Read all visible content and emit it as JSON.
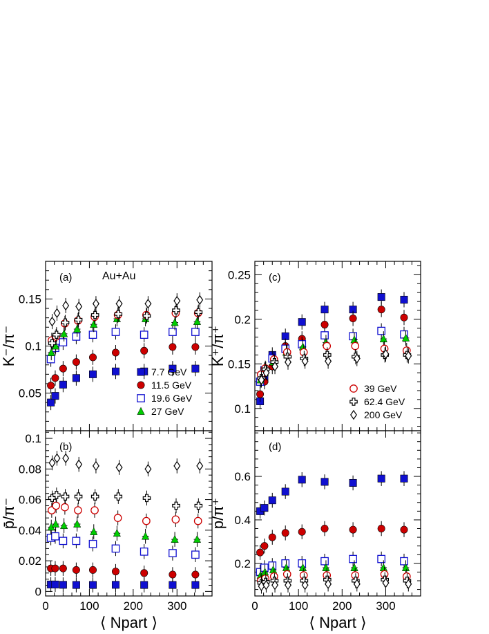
{
  "annotation": "Au+Au",
  "chart_data": [
    {
      "id": "a",
      "type": "scatter",
      "panel_label": "(a)",
      "ylabel": "K⁻/π⁻",
      "xlabel": "",
      "xlim": [
        0,
        380
      ],
      "ylim": [
        0.01,
        0.19
      ],
      "xticks": [
        0,
        100,
        200,
        300
      ],
      "yticks": [
        0.05,
        0.1,
        0.15
      ],
      "ytick_labels": [
        "0.05",
        "0.1",
        "0.15"
      ],
      "legend": {
        "position": "bottom-right",
        "entries": [
          "7.7 GeV",
          "11.5 GeV",
          "19.6 GeV",
          "27 GeV"
        ]
      },
      "series": [
        {
          "name": "7.7 GeV",
          "marker": "filled-square",
          "color": "#1010d0",
          "x": [
            12,
            22,
            40,
            70,
            108,
            160,
            225,
            290,
            342
          ],
          "y": [
            0.04,
            0.047,
            0.059,
            0.066,
            0.07,
            0.073,
            0.073,
            0.076,
            0.076
          ]
        },
        {
          "name": "11.5 GeV",
          "marker": "filled-circle",
          "color": "#cc0000",
          "x": [
            12,
            22,
            40,
            70,
            108,
            160,
            225,
            290,
            342
          ],
          "y": [
            0.058,
            0.066,
            0.076,
            0.083,
            0.088,
            0.093,
            0.095,
            0.099,
            0.099
          ]
        },
        {
          "name": "19.6 GeV",
          "marker": "open-square",
          "color": "#1010d0",
          "x": [
            12,
            22,
            40,
            70,
            108,
            160,
            225,
            290,
            342
          ],
          "y": [
            0.086,
            0.098,
            0.104,
            0.11,
            0.112,
            0.115,
            0.112,
            0.115,
            0.115
          ]
        },
        {
          "name": "27 GeV",
          "marker": "filled-triangle",
          "color": "#00cc00",
          "x": [
            13,
            23,
            42,
            72,
            110,
            163,
            228,
            295,
            346
          ],
          "y": [
            0.093,
            0.1,
            0.113,
            0.118,
            0.123,
            0.129,
            0.129,
            0.125,
            0.126
          ]
        },
        {
          "name": "39 GeV",
          "marker": "open-circle",
          "color": "#cc0000",
          "x": [
            14,
            24,
            44,
            74,
            112,
            165,
            230,
            297,
            348
          ],
          "y": [
            0.106,
            0.11,
            0.124,
            0.127,
            0.131,
            0.133,
            0.133,
            0.135,
            0.135
          ]
        },
        {
          "name": "62.4 GeV",
          "marker": "open-cross",
          "color": "#000000",
          "x": [
            15,
            25,
            45,
            75,
            113,
            166,
            231,
            298,
            349
          ],
          "y": [
            0.103,
            0.112,
            0.125,
            0.128,
            0.133,
            0.134,
            0.132,
            0.138,
            0.136
          ]
        },
        {
          "name": "200 GeV",
          "marker": "open-diamond",
          "color": "#000000",
          "x": [
            15,
            26,
            46,
            76,
            115,
            168,
            234,
            300,
            352
          ],
          "y": [
            0.126,
            0.135,
            0.143,
            0.142,
            0.145,
            0.145,
            0.145,
            0.148,
            0.149
          ]
        }
      ]
    },
    {
      "id": "b",
      "type": "scatter",
      "panel_label": "(b)",
      "ylabel": "p̄/π⁻",
      "xlabel": "⟨ Npart ⟩",
      "xlim": [
        0,
        380
      ],
      "ylim": [
        -0.003,
        0.105
      ],
      "xticks": [
        0,
        100,
        200,
        300
      ],
      "yticks": [
        0,
        0.02,
        0.04,
        0.06,
        0.08,
        0.1
      ],
      "ytick_labels": [
        "0",
        "0.02",
        "0.04",
        "0.06",
        "0.08",
        "0.1"
      ],
      "series": [
        {
          "name": "7.7 GeV",
          "marker": "filled-square",
          "color": "#1010d0",
          "x": [
            12,
            22,
            40,
            70,
            108,
            160,
            225,
            290,
            342
          ],
          "y": [
            0.0045,
            0.0045,
            0.0043,
            0.0042,
            0.0042,
            0.0043,
            0.0042,
            0.0042,
            0.0042
          ]
        },
        {
          "name": "11.5 GeV",
          "marker": "filled-circle",
          "color": "#cc0000",
          "x": [
            12,
            22,
            40,
            70,
            108,
            160,
            225,
            290,
            342
          ],
          "y": [
            0.015,
            0.015,
            0.015,
            0.014,
            0.014,
            0.013,
            0.012,
            0.011,
            0.011
          ]
        },
        {
          "name": "19.6 GeV",
          "marker": "open-square",
          "color": "#1010d0",
          "x": [
            12,
            22,
            40,
            70,
            108,
            160,
            225,
            290,
            342
          ],
          "y": [
            0.035,
            0.036,
            0.033,
            0.033,
            0.031,
            0.028,
            0.026,
            0.025,
            0.024
          ]
        },
        {
          "name": "27 GeV",
          "marker": "filled-triangle",
          "color": "#00cc00",
          "x": [
            13,
            23,
            42,
            72,
            110,
            163,
            228,
            295,
            346
          ],
          "y": [
            0.042,
            0.044,
            0.043,
            0.044,
            0.039,
            0.038,
            0.036,
            0.034,
            0.034
          ]
        },
        {
          "name": "39 GeV",
          "marker": "open-circle",
          "color": "#cc0000",
          "x": [
            14,
            24,
            44,
            74,
            112,
            165,
            230,
            297,
            348
          ],
          "y": [
            0.053,
            0.056,
            0.055,
            0.053,
            0.053,
            0.048,
            0.046,
            0.047,
            0.046
          ]
        },
        {
          "name": "62.4 GeV",
          "marker": "open-cross",
          "color": "#000000",
          "x": [
            15,
            25,
            45,
            75,
            113,
            166,
            231,
            298,
            349
          ],
          "y": [
            0.061,
            0.063,
            0.062,
            0.062,
            0.062,
            0.062,
            0.061,
            0.056,
            0.056
          ]
        },
        {
          "name": "200 GeV",
          "marker": "open-diamond",
          "color": "#000000",
          "x": [
            15,
            26,
            46,
            76,
            115,
            168,
            234,
            300,
            352
          ],
          "y": [
            0.084,
            0.087,
            0.087,
            0.083,
            0.082,
            0.081,
            0.08,
            0.082,
            0.082
          ]
        }
      ]
    },
    {
      "id": "c",
      "type": "scatter",
      "panel_label": "(c)",
      "ylabel": "K⁺/π⁺",
      "xlabel": "",
      "xlim": [
        0,
        380
      ],
      "ylim": [
        0.075,
        0.265
      ],
      "xticks": [
        0,
        100,
        200,
        300
      ],
      "yticks": [
        0.1,
        0.15,
        0.2,
        0.25
      ],
      "ytick_labels": [
        "0.1",
        "0.15",
        "0.2",
        "0.25"
      ],
      "legend": {
        "position": "bottom-right",
        "entries": [
          "39 GeV",
          "62.4 GeV",
          "200 GeV"
        ]
      },
      "series": [
        {
          "name": "7.7 GeV",
          "marker": "filled-square",
          "color": "#1010d0",
          "x": [
            12,
            22,
            40,
            70,
            108,
            160,
            225,
            290,
            342
          ],
          "y": [
            0.108,
            0.133,
            0.16,
            0.181,
            0.197,
            0.211,
            0.211,
            0.225,
            0.222
          ]
        },
        {
          "name": "11.5 GeV",
          "marker": "filled-circle",
          "color": "#cc0000",
          "x": [
            12,
            22,
            40,
            70,
            108,
            160,
            225,
            290,
            342
          ],
          "y": [
            0.116,
            0.13,
            0.147,
            0.17,
            0.178,
            0.194,
            0.201,
            0.211,
            0.202
          ]
        },
        {
          "name": "19.6 GeV",
          "marker": "open-square",
          "color": "#1010d0",
          "x": [
            12,
            22,
            40,
            70,
            108,
            160,
            225,
            290,
            342
          ],
          "y": [
            0.13,
            0.143,
            0.156,
            0.167,
            0.172,
            0.182,
            0.181,
            0.187,
            0.183
          ]
        },
        {
          "name": "27 GeV",
          "marker": "filled-triangle",
          "color": "#00cc00",
          "x": [
            13,
            23,
            42,
            72,
            110,
            163,
            228,
            295,
            346
          ],
          "y": [
            0.132,
            0.14,
            0.152,
            0.163,
            0.169,
            0.174,
            0.177,
            0.178,
            0.179
          ]
        },
        {
          "name": "39 GeV",
          "marker": "open-circle",
          "color": "#cc0000",
          "x": [
            14,
            24,
            44,
            74,
            112,
            165,
            230,
            297,
            348
          ],
          "y": [
            0.138,
            0.145,
            0.155,
            0.163,
            0.163,
            0.17,
            0.17,
            0.167,
            0.165
          ]
        },
        {
          "name": "62.4 GeV",
          "marker": "open-cross",
          "color": "#000000",
          "x": [
            15,
            25,
            45,
            75,
            113,
            166,
            231,
            298,
            349
          ],
          "y": [
            0.134,
            0.144,
            0.152,
            0.158,
            0.156,
            0.16,
            0.158,
            0.16,
            0.16
          ]
        },
        {
          "name": "200 GeV",
          "marker": "open-diamond",
          "color": "#000000",
          "x": [
            15,
            26,
            46,
            76,
            115,
            168,
            234,
            300,
            352
          ],
          "y": [
            0.132,
            0.14,
            0.147,
            0.152,
            0.153,
            0.153,
            0.156,
            0.161,
            0.159
          ]
        }
      ]
    },
    {
      "id": "d",
      "type": "scatter",
      "panel_label": "(d)",
      "ylabel": "p/π⁺",
      "xlabel": "⟨ Npart ⟩",
      "xlim": [
        0,
        380
      ],
      "ylim": [
        0.05,
        0.81
      ],
      "xticks": [
        0,
        100,
        200,
        300
      ],
      "yticks": [
        0.2,
        0.4,
        0.6
      ],
      "ytick_labels": [
        "0.2",
        "0.4",
        "0.6"
      ],
      "series": [
        {
          "name": "7.7 GeV",
          "marker": "filled-square",
          "color": "#1010d0",
          "x": [
            12,
            22,
            40,
            70,
            108,
            160,
            225,
            290,
            342
          ],
          "y": [
            0.44,
            0.455,
            0.49,
            0.53,
            0.585,
            0.575,
            0.57,
            0.59,
            0.59
          ]
        },
        {
          "name": "11.5 GeV",
          "marker": "filled-circle",
          "color": "#cc0000",
          "x": [
            12,
            22,
            40,
            70,
            108,
            160,
            225,
            290,
            342
          ],
          "y": [
            0.25,
            0.28,
            0.32,
            0.34,
            0.345,
            0.36,
            0.355,
            0.36,
            0.355
          ]
        },
        {
          "name": "19.6 GeV",
          "marker": "open-square",
          "color": "#1010d0",
          "x": [
            12,
            22,
            40,
            70,
            108,
            160,
            225,
            290,
            342
          ],
          "y": [
            0.16,
            0.18,
            0.19,
            0.2,
            0.2,
            0.21,
            0.22,
            0.22,
            0.21
          ]
        },
        {
          "name": "27 GeV",
          "marker": "filled-triangle",
          "color": "#00cc00",
          "x": [
            13,
            23,
            42,
            72,
            110,
            163,
            228,
            295,
            346
          ],
          "y": [
            0.145,
            0.16,
            0.17,
            0.18,
            0.18,
            0.18,
            0.18,
            0.18,
            0.18
          ]
        },
        {
          "name": "39 GeV",
          "marker": "open-circle",
          "color": "#cc0000",
          "x": [
            14,
            24,
            44,
            74,
            112,
            165,
            230,
            297,
            348
          ],
          "y": [
            0.12,
            0.13,
            0.14,
            0.15,
            0.145,
            0.145,
            0.145,
            0.15,
            0.14
          ]
        },
        {
          "name": "62.4 GeV",
          "marker": "open-cross",
          "color": "#000000",
          "x": [
            15,
            25,
            45,
            75,
            113,
            166,
            231,
            298,
            349
          ],
          "y": [
            0.11,
            0.115,
            0.12,
            0.12,
            0.12,
            0.125,
            0.12,
            0.125,
            0.12
          ]
        },
        {
          "name": "200 GeV",
          "marker": "open-diamond",
          "color": "#000000",
          "x": [
            15,
            26,
            46,
            76,
            115,
            168,
            234,
            300,
            352
          ],
          "y": [
            0.095,
            0.1,
            0.1,
            0.1,
            0.1,
            0.105,
            0.105,
            0.11,
            0.105
          ]
        }
      ]
    }
  ]
}
